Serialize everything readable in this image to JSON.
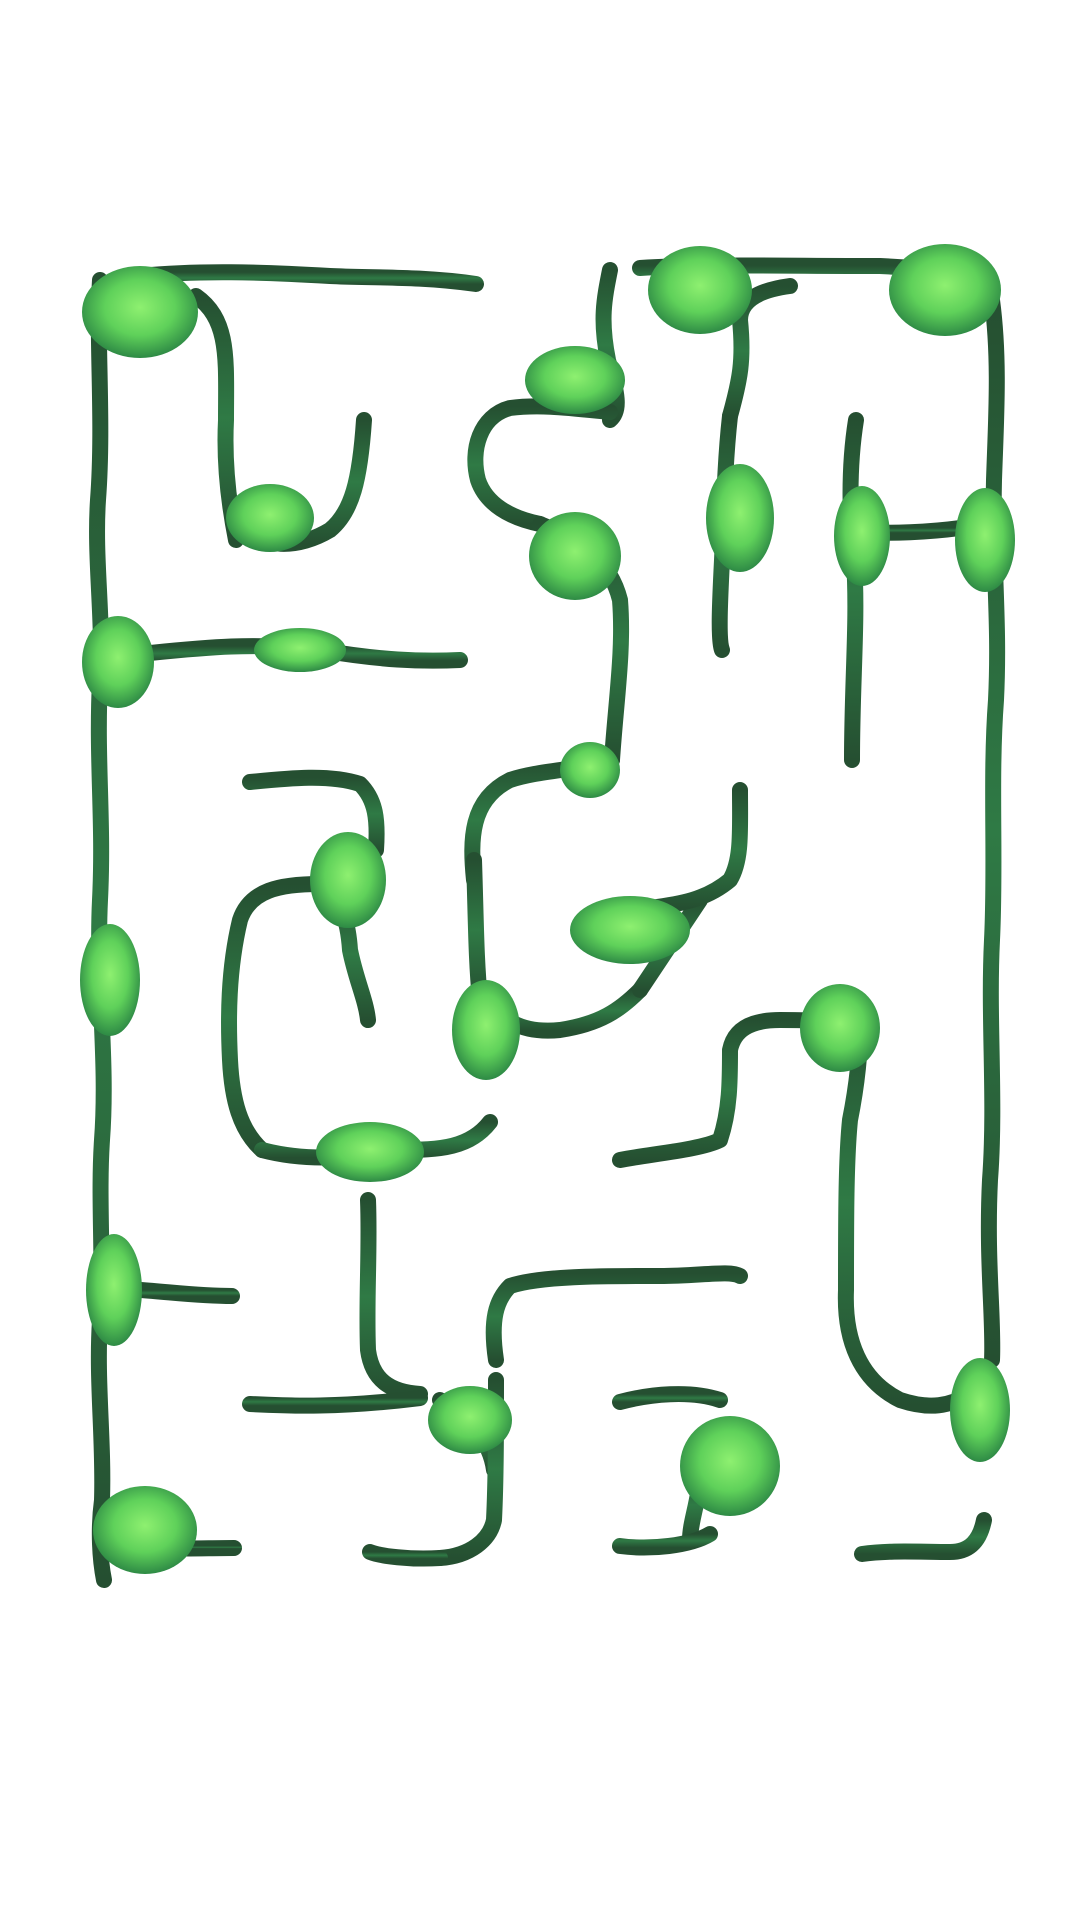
{
  "maze": {
    "colors": {
      "background": "#ffffff",
      "wall_dark": "#254f31",
      "wall_mid": "#2f7a45",
      "wall_light": "#3f9a62",
      "blob_center": "#8ef070",
      "blob_mid": "#5fd15a",
      "blob_edge": "#2e8a45"
    },
    "wall_style": "dark green organic vine strokes",
    "node_style": "glowing light-green blobs at junctions"
  }
}
